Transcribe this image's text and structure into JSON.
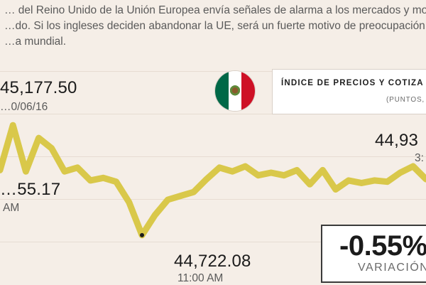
{
  "intro_lines": [
    "… del Reino Unido de la Unión Europea envía señales de alarma a los mercados y mo",
    "…do. Si los ingleses deciden abandonar la UE, será un fuerte motivo de preocupación p",
    "…a mundial."
  ],
  "colors": {
    "background": "#f5eee7",
    "line": "#d9c84a",
    "text": "#1b1b1b",
    "muted": "#5a5a5a"
  },
  "flag": {
    "icon": "mexico-flag-icon"
  },
  "index_box": {
    "title": "ÍNDICE DE PRECIOS Y COTIZA",
    "subtitle": "(PUNTOS, I"
  },
  "variation": {
    "value": "-0.55%",
    "label": "VARIACIÓN"
  },
  "chart_data": {
    "type": "line",
    "title": "ÍNDICE DE PRECIOS Y COTIZA",
    "unit": "(PUNTOS, I",
    "ylim": [
      44600,
      45250
    ],
    "x": [
      0,
      1,
      2,
      3,
      4,
      5,
      6,
      7,
      8,
      9,
      10,
      11,
      12,
      13,
      14,
      15,
      16,
      17,
      18,
      19,
      20,
      21,
      22,
      23,
      24,
      25,
      26,
      27,
      28,
      29,
      30,
      31,
      32,
      33
    ],
    "values": [
      44975,
      45150,
      44970,
      45100,
      45060,
      44970,
      44985,
      44935,
      44945,
      44930,
      44850,
      44722.08,
      44800,
      44860,
      44875,
      44890,
      44940,
      44985,
      44970,
      44990,
      44955,
      44965,
      44955,
      44975,
      44920,
      44975,
      44900,
      44935,
      44925,
      44935,
      44930,
      44965,
      44990,
      44940
    ],
    "annotations": [
      {
        "label_value": "45,177.50",
        "label_date": "…0/06/16",
        "role": "max"
      },
      {
        "label_value": "…55.17",
        "label_time": "AM",
        "role": "open"
      },
      {
        "label_value": "44,722.08",
        "label_time": "11:00 AM",
        "role": "min",
        "point_index": 11
      },
      {
        "label_value": "44,93",
        "label_time": "3:",
        "role": "close"
      }
    ]
  }
}
